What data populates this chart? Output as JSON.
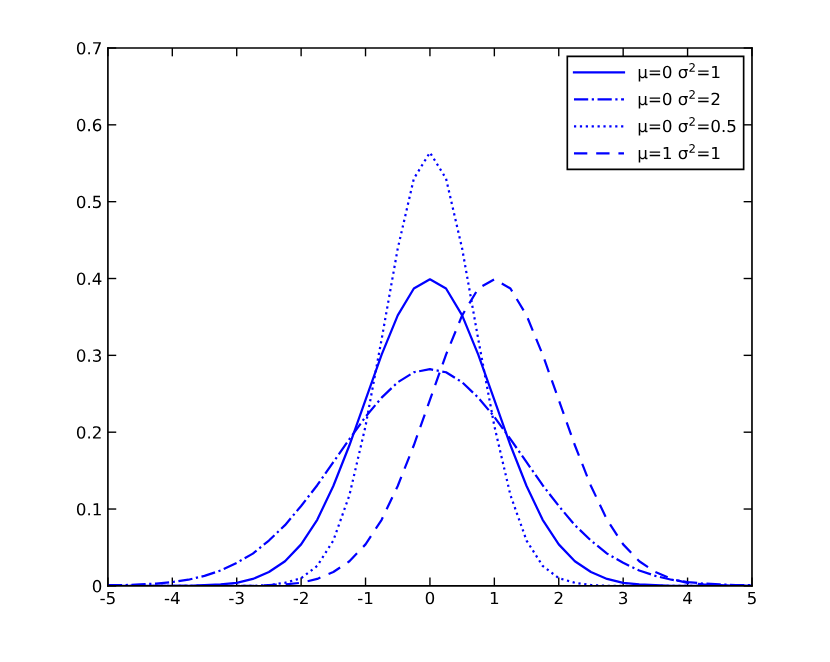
{
  "chart_data": {
    "type": "line",
    "x": [
      -5,
      -4.75,
      -4.5,
      -4.25,
      -4,
      -3.75,
      -3.5,
      -3.25,
      -3,
      -2.75,
      -2.5,
      -2.25,
      -2,
      -1.75,
      -1.5,
      -1.25,
      -1,
      -0.75,
      -0.5,
      -0.25,
      0,
      0.25,
      0.5,
      0.75,
      1,
      1.25,
      1.5,
      1.75,
      2,
      2.25,
      2.5,
      2.75,
      3,
      3.25,
      3.5,
      3.75,
      4,
      4.25,
      4.5,
      4.75,
      5
    ],
    "series": [
      {
        "name": "μ=0 σ$^{2}$=1",
        "color": "#0000ff",
        "line_style": "solid",
        "values": [
          0,
          0,
          0,
          0,
          0,
          0,
          0.001,
          0.002,
          0.004,
          0.009,
          0.018,
          0.032,
          0.054,
          0.086,
          0.13,
          0.183,
          0.242,
          0.301,
          0.352,
          0.387,
          0.399,
          0.387,
          0.352,
          0.301,
          0.242,
          0.183,
          0.13,
          0.086,
          0.054,
          0.032,
          0.018,
          0.009,
          0.004,
          0.002,
          0.001,
          0,
          0,
          0,
          0,
          0,
          0
        ]
      },
      {
        "name": "μ=0 σ$^{2}$=2",
        "color": "#0000ff",
        "line_style": "dashdot",
        "values": [
          0.001,
          0.001,
          0.002,
          0.003,
          0.005,
          0.008,
          0.013,
          0.02,
          0.03,
          0.042,
          0.059,
          0.079,
          0.104,
          0.131,
          0.161,
          0.191,
          0.22,
          0.245,
          0.265,
          0.278,
          0.282,
          0.278,
          0.265,
          0.245,
          0.22,
          0.191,
          0.161,
          0.131,
          0.104,
          0.079,
          0.059,
          0.042,
          0.03,
          0.02,
          0.013,
          0.008,
          0.005,
          0.003,
          0.002,
          0.001,
          0.001
        ]
      },
      {
        "name": "μ=0 σ$^{2}$=0.5",
        "color": "#0000ff",
        "line_style": "dotted",
        "values": [
          0,
          0,
          0,
          0,
          0,
          0,
          0,
          0,
          0,
          0,
          0.001,
          0.004,
          0.01,
          0.026,
          0.059,
          0.118,
          0.208,
          0.321,
          0.439,
          0.53,
          0.564,
          0.53,
          0.439,
          0.321,
          0.208,
          0.118,
          0.059,
          0.026,
          0.01,
          0.004,
          0.001,
          0,
          0,
          0,
          0,
          0,
          0,
          0,
          0,
          0,
          0
        ]
      },
      {
        "name": "μ=1 σ$^{2}$=1",
        "color": "#0000ff",
        "line_style": "dashed",
        "values": [
          0,
          0,
          0,
          0,
          0,
          0,
          0,
          0,
          0,
          0,
          0.001,
          0.002,
          0.004,
          0.009,
          0.018,
          0.032,
          0.054,
          0.086,
          0.13,
          0.183,
          0.242,
          0.301,
          0.352,
          0.387,
          0.399,
          0.387,
          0.352,
          0.301,
          0.242,
          0.183,
          0.13,
          0.086,
          0.054,
          0.032,
          0.018,
          0.009,
          0.004,
          0.002,
          0.001,
          0,
          0
        ]
      }
    ],
    "xlim": [
      -5,
      5
    ],
    "xticks": [
      -5,
      -4,
      -3,
      -2,
      -1,
      0,
      1,
      2,
      3,
      4,
      5
    ],
    "ylim": [
      0,
      0.7
    ],
    "yticks": [
      0,
      0.1,
      0.2,
      0.3,
      0.4,
      0.5,
      0.6,
      0.7
    ],
    "grid": false,
    "legend": "top right",
    "marker": "none"
  }
}
